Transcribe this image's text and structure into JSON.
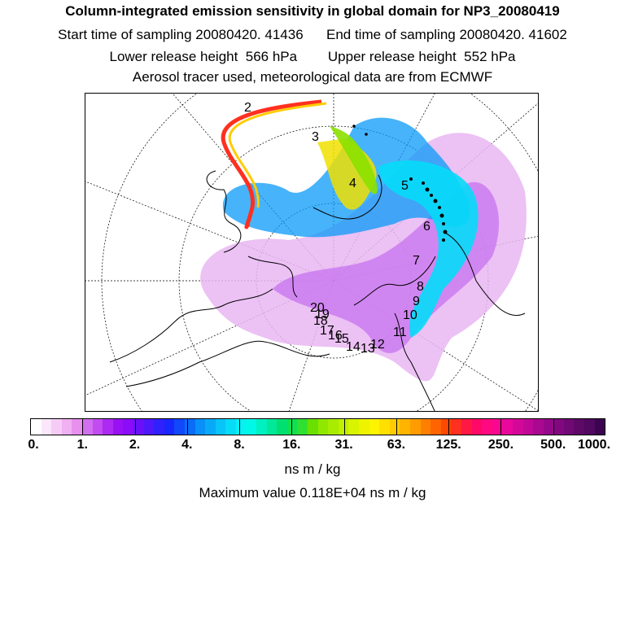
{
  "header": {
    "title": "Column-integrated emission sensitivity in global domain for NP3_20080419",
    "line1": "Start time of sampling 20080420. 41436      End time of sampling 20080420. 41602",
    "line2": "Lower release height  566 hPa        Upper release height  552 hPa",
    "line3": "Aerosol tracer used, meteorological data are from ECMWF"
  },
  "map": {
    "projection": "polar stereographic",
    "trajectory_labels": [
      "2",
      "3",
      "4",
      "5",
      "6",
      "7",
      "8",
      "9",
      "10",
      "11",
      "12",
      "13",
      "14",
      "15",
      "16",
      "17",
      "18",
      "19",
      "20"
    ]
  },
  "colorbar": {
    "tick_labels": [
      "0.",
      "1.",
      "2.",
      "4.",
      "8.",
      "16.",
      "31.",
      "63.",
      "125.",
      "250.",
      "500.",
      "1000."
    ],
    "colors": [
      "#ffffff",
      "#fbe6fb",
      "#f6ccf6",
      "#f0b0f2",
      "#e890ee",
      "#d26ff0",
      "#c24cf0",
      "#ad2af2",
      "#9a10f5",
      "#8a0cf8",
      "#6a10f8",
      "#4e18fa",
      "#3020fc",
      "#1828fc",
      "#1048fa",
      "#0a6cf8",
      "#0890f8",
      "#08aaf8",
      "#08c4f8",
      "#06dcf8",
      "#08f0f4",
      "#00f8e8",
      "#00f0c0",
      "#00e898",
      "#00e070",
      "#10e050",
      "#30e030",
      "#6ae000",
      "#90e800",
      "#a8ec00",
      "#c0f000",
      "#d8f400",
      "#eef400",
      "#fff400",
      "#ffe000",
      "#ffcc00",
      "#ffb400",
      "#ff9c00",
      "#ff8000",
      "#ff6400",
      "#ff4800",
      "#ff3020",
      "#ff1844",
      "#ff0868",
      "#ff0880",
      "#f80890",
      "#e8089c",
      "#d40898",
      "#c00896",
      "#aa0890",
      "#96088a",
      "#820880",
      "#700876",
      "#5e0868",
      "#500860",
      "#3c0450"
    ],
    "units": "ns m / kg",
    "maximum_value": "Maximum value  0.118E+04 ns m / kg"
  }
}
